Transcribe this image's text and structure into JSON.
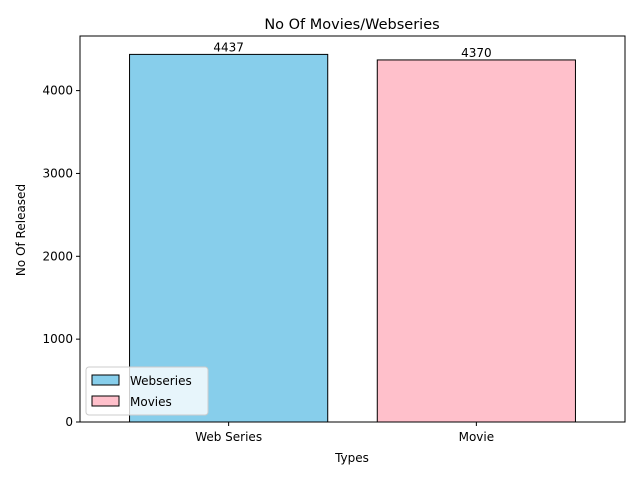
{
  "chart_data": {
    "type": "bar",
    "title": "No Of Movies/Webseries",
    "xlabel": "Types",
    "ylabel": "No Of Released",
    "categories": [
      "Web Series",
      "Movie"
    ],
    "values": [
      4437,
      4370
    ],
    "data_labels": [
      "4437",
      "4370"
    ],
    "bar_colors": [
      "#87ceeb",
      "#ffc0cb"
    ],
    "bar_edge_color": "#000000",
    "ylim": [
      0,
      4659
    ],
    "yticks": [
      0,
      1000,
      2000,
      3000,
      4000
    ],
    "grid": false,
    "legend": {
      "placement": "lower-left",
      "entries": [
        {
          "label": "Webseries",
          "color": "#87ceeb"
        },
        {
          "label": "Movies",
          "color": "#ffc0cb"
        }
      ]
    }
  }
}
